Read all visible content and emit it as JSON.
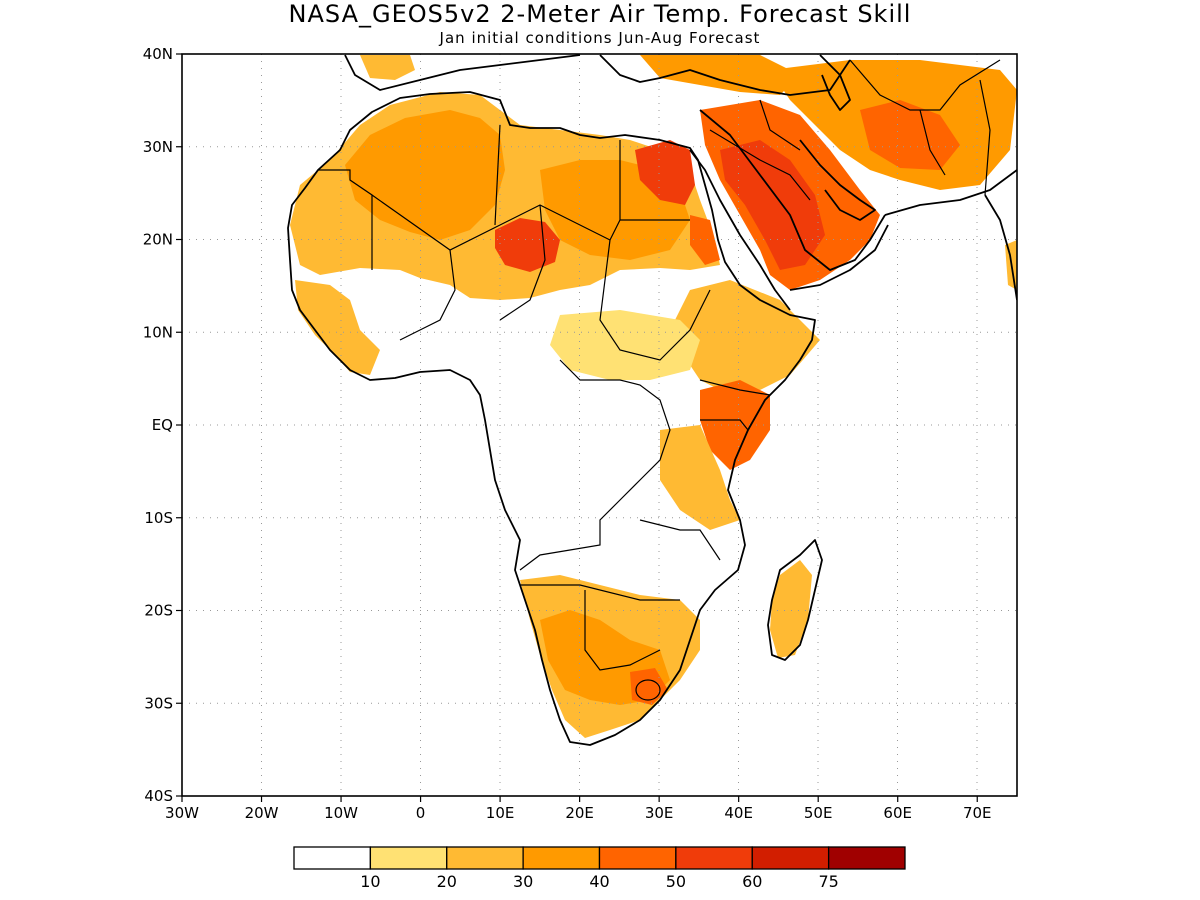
{
  "title": "NASA_GEOS5v2 2-Meter Air Temp. Forecast Skill",
  "subtitle": "Jan initial conditions  Jun-Aug Forecast",
  "axes": {
    "lat_labels": [
      {
        "value": 40,
        "text": "40N"
      },
      {
        "value": 30,
        "text": "30N"
      },
      {
        "value": 20,
        "text": "20N"
      },
      {
        "value": 10,
        "text": "10N"
      },
      {
        "value": 0,
        "text": "EQ"
      },
      {
        "value": -10,
        "text": "10S"
      },
      {
        "value": -20,
        "text": "20S"
      },
      {
        "value": -30,
        "text": "30S"
      },
      {
        "value": -40,
        "text": "40S"
      }
    ],
    "lon_labels": [
      {
        "value": -30,
        "text": "30W"
      },
      {
        "value": -20,
        "text": "20W"
      },
      {
        "value": -10,
        "text": "10W"
      },
      {
        "value": 0,
        "text": "0"
      },
      {
        "value": 10,
        "text": "10E"
      },
      {
        "value": 20,
        "text": "20E"
      },
      {
        "value": 30,
        "text": "30E"
      },
      {
        "value": 40,
        "text": "40E"
      },
      {
        "value": 50,
        "text": "50E"
      },
      {
        "value": 60,
        "text": "60E"
      },
      {
        "value": 70,
        "text": "70E"
      }
    ],
    "lon_range": [
      -30,
      75
    ],
    "lat_range": [
      -40,
      40
    ],
    "grid": true
  },
  "colorbar": {
    "colors": [
      "#ffffff",
      "#ffe173",
      "#ffba33",
      "#ff9a00",
      "#ff6400",
      "#f03c0a",
      "#d21e00",
      "#a00000"
    ],
    "labels": [
      "10",
      "20",
      "30",
      "40",
      "50",
      "60",
      "75"
    ]
  }
}
